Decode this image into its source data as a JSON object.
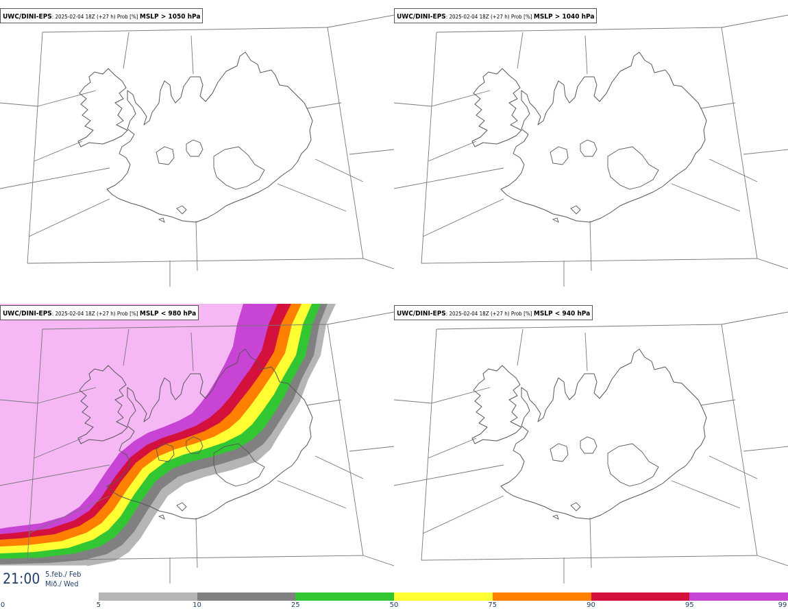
{
  "panels": [
    {
      "source": "UWC/DINI-EPS",
      "run": ": 2025-02-04 18Z (+27 h) Prob [%] ",
      "variable": "MSLP > 1050 hPa"
    },
    {
      "source": "UWC/DINI-EPS",
      "run": ": 2025-02-04 18Z (+27 h) Prob [%] ",
      "variable": "MSLP > 1040 hPa"
    },
    {
      "source": "UWC/DINI-EPS",
      "run": ": 2025-02-04 18Z (+27 h) Prob [%] ",
      "variable": "MSLP < 980 hPa"
    },
    {
      "source": "UWC/DINI-EPS",
      "run": ": 2025-02-04 18Z (+27 h) Prob [%] ",
      "variable": "MSLP < 940 hPa"
    }
  ],
  "valid_time": {
    "time": "21:00",
    "date": "5.feb./ Feb",
    "weekday": "Mið./ Wed"
  },
  "colorbar": {
    "ticks": [
      "0",
      "5",
      "10",
      "25",
      "50",
      "75",
      "90",
      "95",
      "99"
    ],
    "colors": [
      "#ffffff",
      "#b5b5b5",
      "#808080",
      "#33c633",
      "#ffff33",
      "#ff7f00",
      "#d4113c",
      "#c844d4",
      "#f5b8f5"
    ]
  },
  "colors": {
    "coast": "#555555",
    "grid": "#777777",
    "label_text": "#1e3f66"
  }
}
